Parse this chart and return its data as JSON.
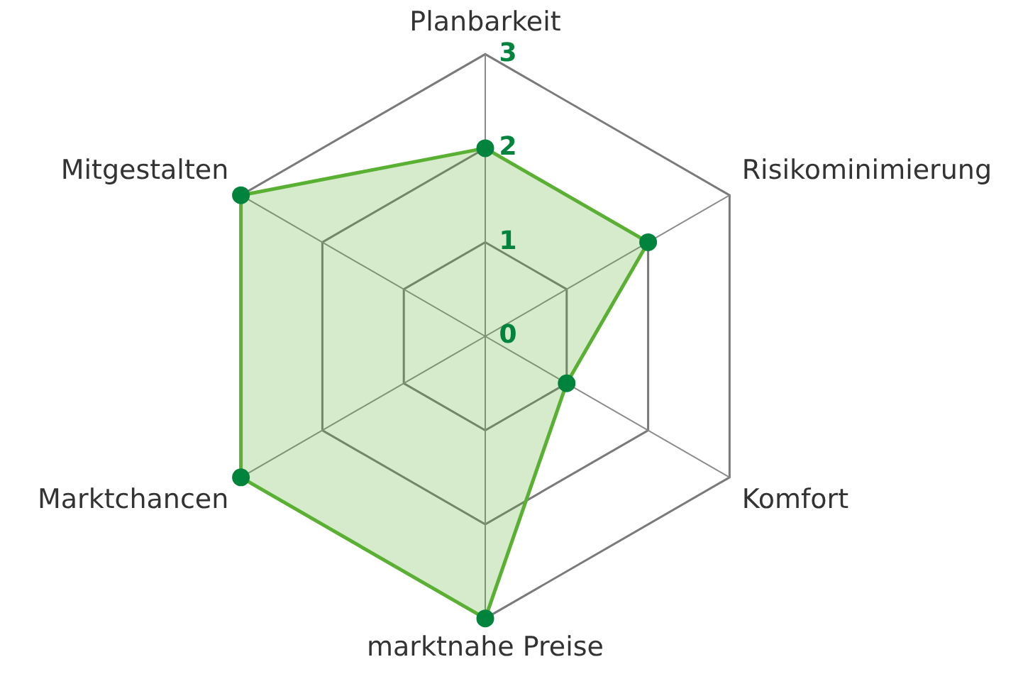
{
  "chart_data": {
    "type": "radar",
    "categories": [
      "Planbarkeit",
      "Risikominimierung",
      "Komfort",
      "marktnahe Preise",
      "Marktchancen",
      "Mitgestalten"
    ],
    "series": [
      {
        "color": "#5ab033",
        "values": [
          2,
          2,
          1,
          3,
          3,
          3
        ]
      }
    ],
    "ylim": [
      0,
      3
    ],
    "yticks": [
      0,
      1,
      2,
      3
    ],
    "grid": true,
    "marker": "circle"
  }
}
